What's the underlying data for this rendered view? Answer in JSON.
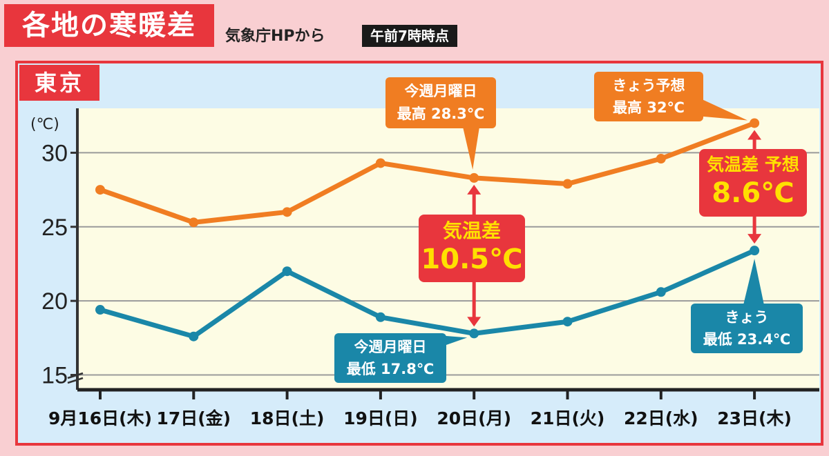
{
  "header": {
    "title": "各地の寒暖差",
    "source": "気象庁HPから",
    "time_badge": "午前7時時点"
  },
  "city": "東京",
  "callouts": {
    "monday_high": {
      "line1": "今週月曜日",
      "line2": "最高 28.3℃"
    },
    "today_high": {
      "line1": "きょう予想",
      "line2": "最高 32℃"
    },
    "monday_low": {
      "line1": "今週月曜日",
      "line2": "最低 17.8℃"
    },
    "today_low": {
      "line1": "きょう",
      "line2": "最低 23.4℃"
    },
    "diff_monday": {
      "label": "気温差",
      "value": "10.5℃"
    },
    "diff_today": {
      "label": "気温差 予想",
      "value": "8.6℃"
    }
  },
  "colors": {
    "high": "#f07d22",
    "low": "#1a87a8",
    "accent": "#e8363d",
    "plot_bg": "#fdfce4"
  },
  "chart_data": {
    "type": "line",
    "ylabel": "(℃)",
    "ylim": [
      14,
      33
    ],
    "yticks": [
      15,
      20,
      25,
      30
    ],
    "categories": [
      "9月16日(木)",
      "17日(金)",
      "18日(土)",
      "19日(日)",
      "20日(月)",
      "21日(火)",
      "22日(水)",
      "23日(木)"
    ],
    "series": [
      {
        "name": "最高",
        "values": [
          27.5,
          25.3,
          26.0,
          29.3,
          28.3,
          27.9,
          29.6,
          32.0
        ]
      },
      {
        "name": "最低",
        "values": [
          19.4,
          17.6,
          22.0,
          18.9,
          17.8,
          18.6,
          20.6,
          23.4
        ]
      }
    ]
  }
}
